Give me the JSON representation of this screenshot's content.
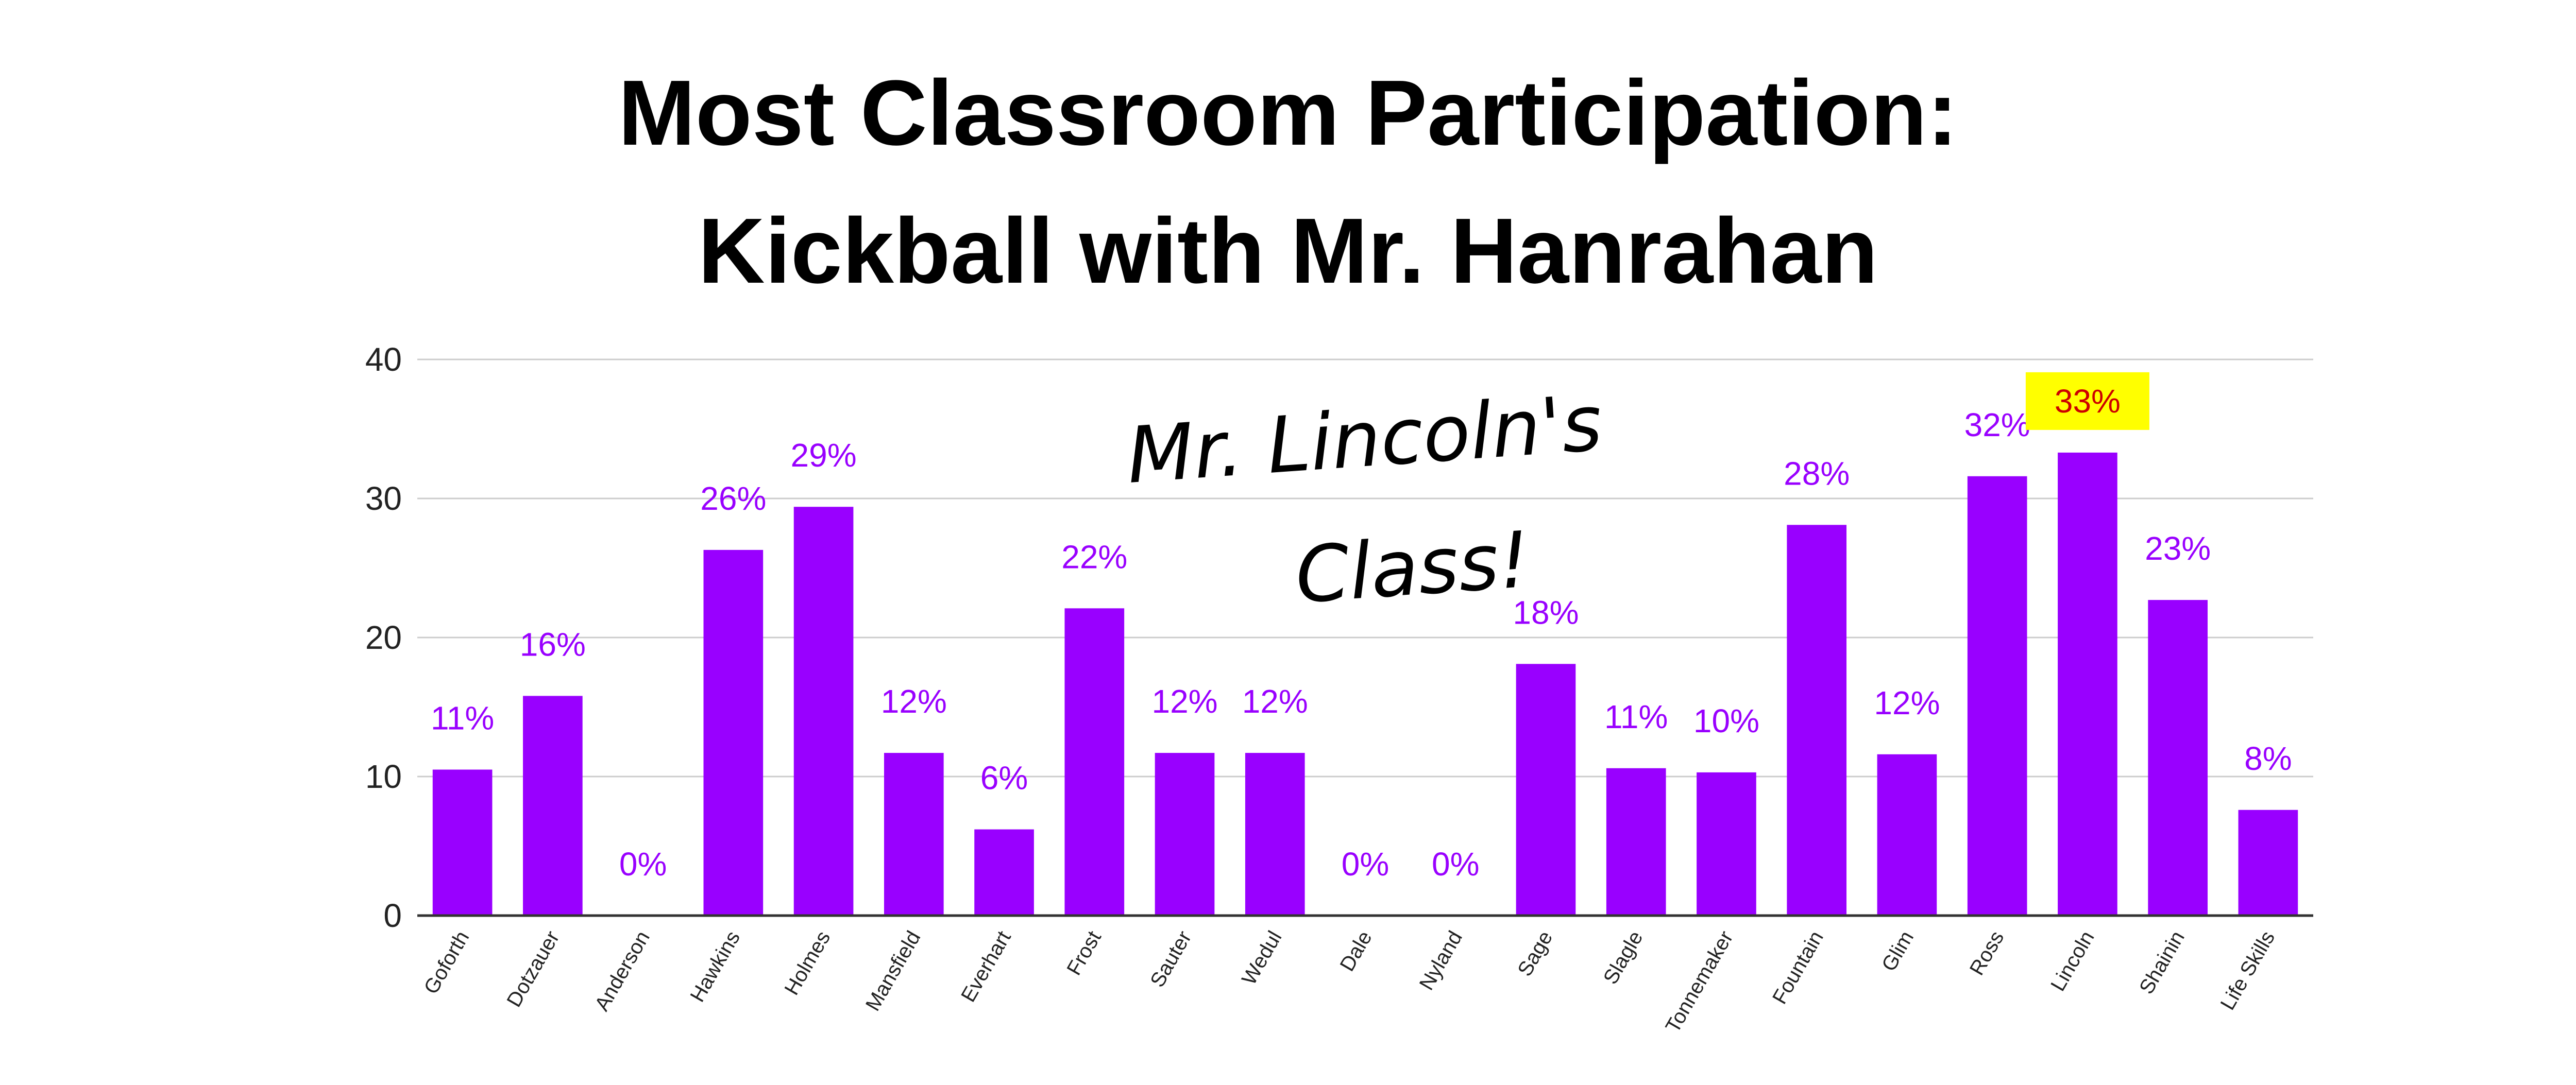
{
  "title_line1": "Most Classroom Participation:",
  "title_line2": "Kickball with Mr. Hanrahan",
  "annotation": {
    "line1": "Mr. Lincoln's",
    "line2": "Class!"
  },
  "colors": {
    "bar": "#9900ff",
    "label": "#9900ff",
    "highlight_bg": "#ffff00",
    "highlight_text": "#cc0000",
    "grid": "#cccccc",
    "axis": "#333333"
  },
  "chart_data": {
    "type": "bar",
    "categories": [
      "Goforth",
      "Dotzauer",
      "Anderson",
      "Hawkins",
      "Holmes",
      "Mansfield",
      "Everhart",
      "Frost",
      "Sauter",
      "Wedul",
      "Dale",
      "Nyland",
      "Sage",
      "Slagle",
      "Tonnemaker",
      "Fountain",
      "Glim",
      "Ross",
      "Lincoln",
      "Shainin",
      "Life Skills"
    ],
    "values": [
      10.5,
      15.8,
      0,
      26.3,
      29.4,
      11.7,
      6.2,
      22.1,
      11.7,
      11.7,
      0,
      0,
      18.1,
      10.6,
      10.3,
      28.1,
      11.6,
      31.6,
      33.3,
      22.7,
      7.6
    ],
    "data_labels": [
      "11%",
      "16%",
      "0%",
      "26%",
      "29%",
      "12%",
      "6%",
      "22%",
      "12%",
      "12%",
      "0%",
      "0%",
      "18%",
      "11%",
      "10%",
      "28%",
      "12%",
      "32%",
      "33%",
      "23%",
      "8%"
    ],
    "highlighted": "Lincoln",
    "yticks": [
      0,
      10,
      20,
      30,
      40
    ],
    "ylim": [
      0,
      40
    ],
    "grid": true,
    "legend": "none"
  }
}
